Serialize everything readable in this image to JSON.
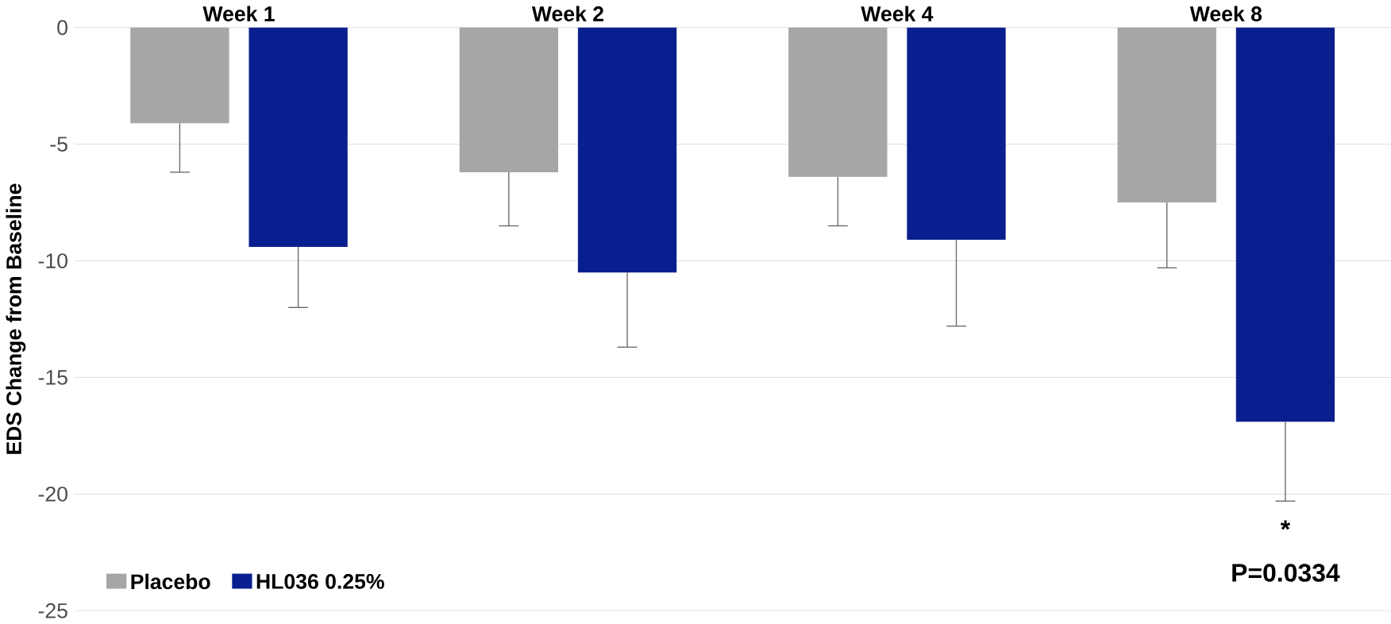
{
  "chart_data": {
    "type": "bar",
    "ylabel": "EDS Change from Baseline",
    "categories": [
      "Week 1",
      "Week 2",
      "Week 4",
      "Week 8"
    ],
    "series": [
      {
        "name": "Placebo",
        "color": "#a6a6a6",
        "values": [
          -4.1,
          -6.2,
          -6.4,
          -7.5
        ],
        "errors": [
          [
            -6.2,
            -4.1
          ],
          [
            -8.5,
            -6.2
          ],
          [
            -8.5,
            -6.4
          ],
          [
            -10.3,
            -7.5
          ]
        ]
      },
      {
        "name": "HL036 0.25%",
        "color": "#0a1f8f",
        "values": [
          -9.4,
          -10.5,
          -9.1,
          -16.9
        ],
        "errors": [
          [
            -12.0,
            -9.4
          ],
          [
            -13.7,
            -10.5
          ],
          [
            -12.8,
            -9.1
          ],
          [
            -20.3,
            -16.9
          ]
        ]
      }
    ],
    "ylim": [
      -25,
      0
    ],
    "yticks": [
      -25,
      -20,
      -15,
      -10,
      -5,
      0
    ],
    "grid": "y",
    "legend": "bottom left",
    "annotations": [
      "*",
      "P=0.0334"
    ]
  }
}
